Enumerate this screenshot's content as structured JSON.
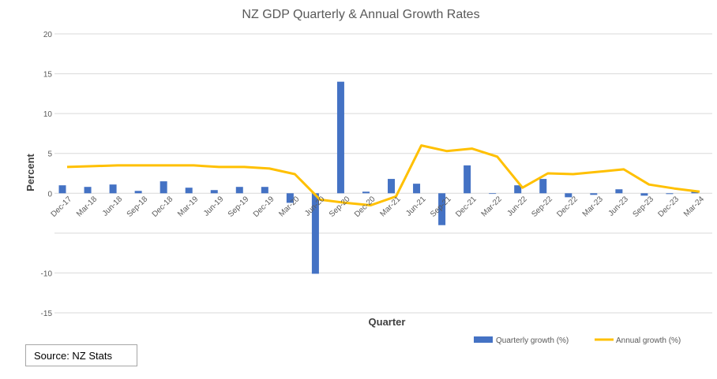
{
  "chart_data": {
    "type": "bar",
    "title": "NZ GDP Quarterly & Annual Growth Rates",
    "xlabel": "Quarter",
    "ylabel": "Percent",
    "ylim": [
      -15,
      20
    ],
    "yticks": [
      -15,
      -10,
      -5,
      0,
      5,
      10,
      15,
      20
    ],
    "ytick_labels": [
      "-15",
      "-10",
      "",
      "0",
      "5",
      "10",
      "15",
      "20"
    ],
    "grid": true,
    "legend_position": "bottom-right",
    "categories": [
      "Dec-17",
      "Mar-18",
      "Jun-18",
      "Sep-18",
      "Dec-18",
      "Mar-19",
      "Jun-19",
      "Sep-19",
      "Dec-19",
      "Mar-20",
      "Jun-20",
      "Sep-20",
      "Dec-20",
      "Mar-21",
      "Jun-21",
      "Sep-21",
      "Dec-21",
      "Mar-22",
      "Jun-22",
      "Sep-22",
      "Dec-22",
      "Mar-23",
      "Jun-23",
      "Sep-23",
      "Dec-23",
      "Mar-24"
    ],
    "series": [
      {
        "name": "Quarterly growth (%)",
        "type": "bar",
        "color": "#4472c4",
        "values": [
          1.0,
          0.8,
          1.1,
          0.3,
          1.5,
          0.7,
          0.4,
          0.8,
          0.8,
          -1.2,
          -10.1,
          14.0,
          0.2,
          1.8,
          1.2,
          -4.0,
          3.5,
          0.0,
          1.0,
          1.8,
          -0.5,
          -0.2,
          0.5,
          -0.3,
          -0.1,
          0.2
        ]
      },
      {
        "name": "Annual growth (%)",
        "type": "line",
        "color": "#ffc000",
        "values": [
          3.3,
          3.4,
          3.5,
          3.5,
          3.5,
          3.5,
          3.3,
          3.3,
          3.1,
          2.4,
          -0.8,
          -1.2,
          -1.5,
          -0.4,
          6.0,
          5.3,
          5.6,
          4.6,
          0.7,
          2.5,
          2.4,
          2.7,
          3.0,
          1.1,
          0.6,
          0.2
        ]
      }
    ]
  },
  "source_text": "Source: NZ Stats"
}
